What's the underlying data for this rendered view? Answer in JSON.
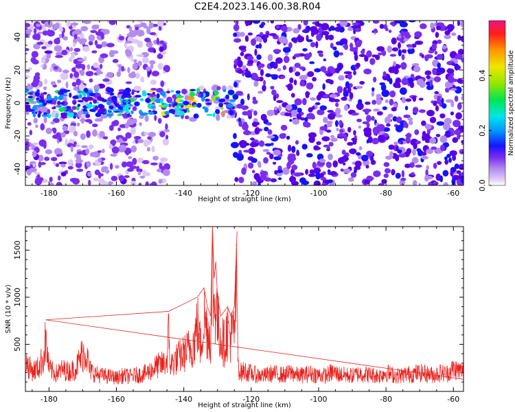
{
  "title": "C2E4.2023.146.00.38.R04",
  "colors": {
    "snr_line": "#e8231e",
    "spectrogram_scale": [
      "#ffffff",
      "#dcc8f5",
      "#b48cf0",
      "#7a2df0",
      "#5a00e6",
      "#1414ff",
      "#0096ff",
      "#00e6e6",
      "#00e650",
      "#96e600",
      "#f0e600",
      "#ff9600",
      "#ff1e1e",
      "#f0147f"
    ]
  },
  "chart_data": [
    {
      "type": "heatmap",
      "title": "",
      "xlabel": "Height of straight line (km)",
      "ylabel": "Frequency (Hz)",
      "xlim": [
        -187,
        -57
      ],
      "ylim": [
        -50,
        50
      ],
      "x_ticks": [
        -180,
        -160,
        -140,
        -120,
        -100,
        -80,
        -60
      ],
      "y_ticks": [
        -40,
        -20,
        0,
        20,
        40
      ],
      "colorbar": {
        "label": "Normalized spectral amplitude",
        "range": [
          0,
          0.6
        ],
        "ticks": [
          0.0,
          0.2,
          0.4
        ]
      },
      "features": {
        "strong_band_center_hz": 0,
        "strong_band_halfwidth_hz": 8,
        "strong_band_x_range": [
          -187,
          -125
        ],
        "peak_amplitude_x_range": [
          -150,
          -126
        ],
        "empty_region_x_range": [
          -145,
          -125
        ],
        "broadband_noise_x_range": [
          -125,
          -57
        ]
      }
    },
    {
      "type": "line",
      "title": "",
      "xlabel": "Height of straight line (km)",
      "ylabel": "SNR (10 * v/v)",
      "xlim": [
        -187,
        -57
      ],
      "ylim": [
        0,
        1750
      ],
      "x_ticks": [
        -180,
        -160,
        -140,
        -120,
        -100,
        -80,
        -60
      ],
      "y_ticks": [
        500,
        1000,
        1500
      ],
      "series": [
        {
          "x": [
            -187,
            -185,
            -183,
            -181.5,
            -181,
            -180,
            -178,
            -176,
            -174,
            -172,
            -170,
            -169,
            -168,
            -166,
            -164,
            -162,
            -160,
            -158,
            -156,
            -154,
            -152,
            -150,
            -148,
            -146,
            -145,
            -144.5,
            -144,
            -142,
            -140,
            -138,
            -137,
            -136,
            -135,
            -134,
            -133,
            -132,
            -131.5,
            -131,
            -130.5,
            -130,
            -129,
            -128,
            -127,
            -126,
            -125,
            -124.2,
            -124,
            -123.5,
            -123,
            -122,
            -120,
            -118,
            -116,
            -114,
            -112,
            -110,
            -108,
            -106,
            -104,
            -102,
            -100,
            -98,
            -96,
            -94,
            -92,
            -90,
            -88,
            -86,
            -84,
            -82,
            -80,
            -78,
            -76,
            -74,
            -72,
            -70,
            -68,
            -66,
            -64,
            -62,
            -60,
            -58,
            -57
          ],
          "values": [
            430,
            300,
            350,
            520,
            760,
            330,
            260,
            320,
            290,
            340,
            560,
            580,
            320,
            250,
            230,
            220,
            200,
            230,
            220,
            240,
            250,
            300,
            370,
            400,
            450,
            850,
            380,
            480,
            550,
            650,
            700,
            1000,
            650,
            1100,
            900,
            800,
            1750,
            1200,
            1380,
            1000,
            800,
            700,
            900,
            800,
            900,
            1700,
            500,
            300,
            280,
            300,
            260,
            240,
            230,
            260,
            250,
            240,
            280,
            230,
            250,
            260,
            240,
            230,
            280,
            250,
            240,
            230,
            260,
            250,
            240,
            230,
            280,
            240,
            230,
            250,
            260,
            270,
            260,
            240,
            270,
            260,
            330,
            300,
            290
          ]
        }
      ]
    }
  ]
}
